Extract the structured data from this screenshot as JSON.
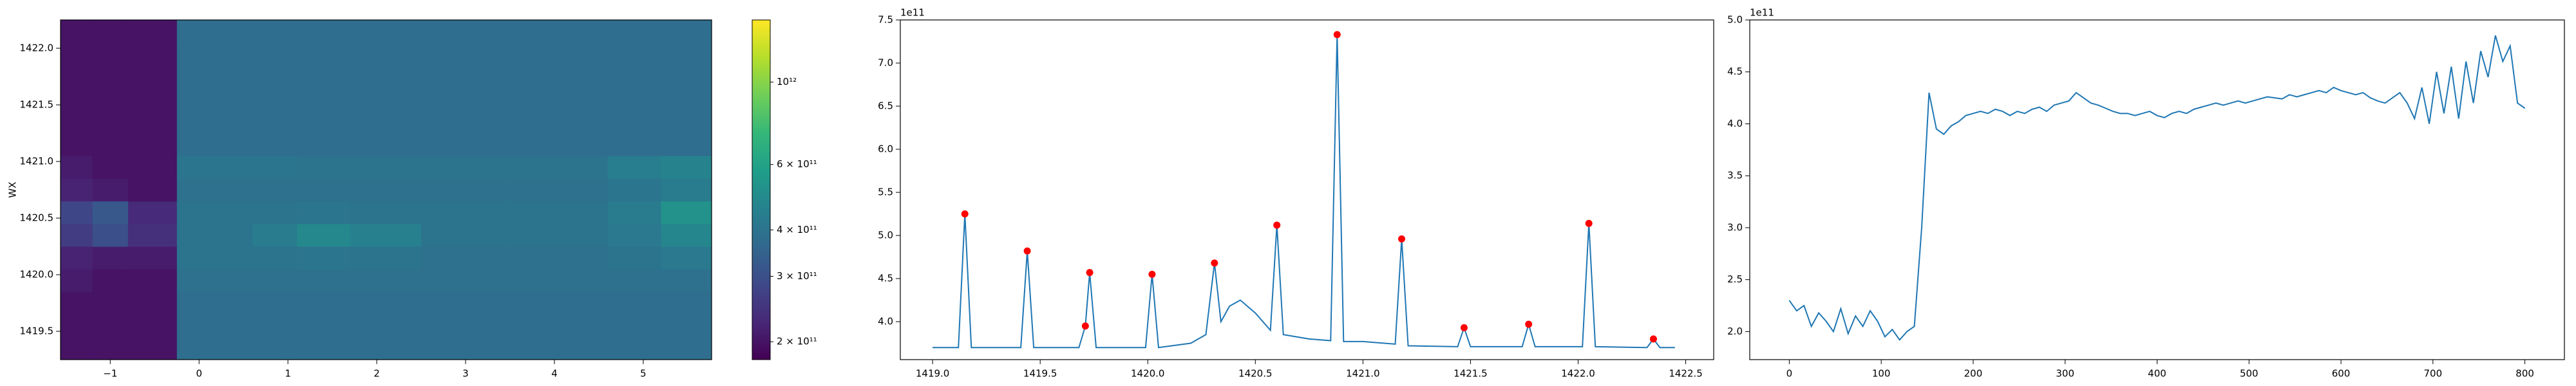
{
  "chart_data": [
    {
      "type": "heatmap",
      "ylabel": "WX",
      "x_edges": [
        -1.56,
        -1.2,
        -0.8,
        -0.25,
        0.6,
        1.1,
        1.7,
        2.5,
        3.5,
        4.6,
        5.2,
        5.77
      ],
      "y_edges": [
        1419.25,
        1419.45,
        1419.65,
        1419.85,
        1420.05,
        1420.25,
        1420.45,
        1420.65,
        1420.85,
        1421.05,
        1421.25,
        1421.45,
        1421.65,
        1421.85,
        1422.05,
        1422.25
      ],
      "z": [
        [
          200000000000.0,
          200000000000.0,
          200000000000.0,
          380000000000.0,
          380000000000.0,
          380000000000.0,
          380000000000.0,
          380000000000.0,
          380000000000.0,
          380000000000.0,
          380000000000.0
        ],
        [
          200000000000.0,
          200000000000.0,
          200000000000.0,
          380000000000.0,
          380000000000.0,
          380000000000.0,
          380000000000.0,
          380000000000.0,
          380000000000.0,
          380000000000.0,
          380000000000.0
        ],
        [
          200000000000.0,
          200000000000.0,
          200000000000.0,
          380000000000.0,
          380000000000.0,
          380000000000.0,
          380000000000.0,
          380000000000.0,
          380000000000.0,
          380000000000.0,
          380000000000.0
        ],
        [
          210000000000.0,
          200000000000.0,
          200000000000.0,
          390000000000.0,
          390000000000.0,
          390000000000.0,
          390000000000.0,
          390000000000.0,
          390000000000.0,
          390000000000.0,
          390000000000.0
        ],
        [
          220000000000.0,
          210000000000.0,
          210000000000.0,
          400000000000.0,
          400000000000.0,
          410000000000.0,
          400000000000.0,
          390000000000.0,
          390000000000.0,
          400000000000.0,
          420000000000.0
        ],
        [
          260000000000.0,
          300000000000.0,
          240000000000.0,
          400000000000.0,
          430000000000.0,
          480000000000.0,
          450000000000.0,
          400000000000.0,
          400000000000.0,
          420000000000.0,
          470000000000.0
        ],
        [
          280000000000.0,
          320000000000.0,
          230000000000.0,
          400000000000.0,
          400000000000.0,
          410000000000.0,
          400000000000.0,
          400000000000.0,
          400000000000.0,
          430000000000.0,
          520000000000.0
        ],
        [
          220000000000.0,
          210000000000.0,
          200000000000.0,
          390000000000.0,
          390000000000.0,
          390000000000.0,
          390000000000.0,
          390000000000.0,
          390000000000.0,
          410000000000.0,
          430000000000.0
        ],
        [
          210000000000.0,
          200000000000.0,
          200000000000.0,
          410000000000.0,
          410000000000.0,
          400000000000.0,
          400000000000.0,
          400000000000.0,
          400000000000.0,
          440000000000.0,
          460000000000.0
        ],
        [
          200000000000.0,
          200000000000.0,
          200000000000.0,
          380000000000.0,
          380000000000.0,
          380000000000.0,
          380000000000.0,
          380000000000.0,
          380000000000.0,
          380000000000.0,
          380000000000.0
        ],
        [
          200000000000.0,
          200000000000.0,
          200000000000.0,
          380000000000.0,
          380000000000.0,
          380000000000.0,
          380000000000.0,
          380000000000.0,
          380000000000.0,
          380000000000.0,
          380000000000.0
        ],
        [
          200000000000.0,
          200000000000.0,
          200000000000.0,
          380000000000.0,
          380000000000.0,
          380000000000.0,
          380000000000.0,
          380000000000.0,
          380000000000.0,
          380000000000.0,
          380000000000.0
        ],
        [
          200000000000.0,
          200000000000.0,
          200000000000.0,
          380000000000.0,
          380000000000.0,
          380000000000.0,
          380000000000.0,
          380000000000.0,
          380000000000.0,
          380000000000.0,
          380000000000.0
        ],
        [
          200000000000.0,
          200000000000.0,
          200000000000.0,
          380000000000.0,
          380000000000.0,
          380000000000.0,
          380000000000.0,
          380000000000.0,
          380000000000.0,
          380000000000.0,
          380000000000.0
        ],
        [
          200000000000.0,
          200000000000.0,
          200000000000.0,
          380000000000.0,
          380000000000.0,
          380000000000.0,
          380000000000.0,
          380000000000.0,
          380000000000.0,
          380000000000.0,
          380000000000.0
        ]
      ],
      "xlim": [
        -1.56,
        5.77
      ],
      "ylim": [
        1419.25,
        1422.25
      ],
      "xticks": [
        {
          "value": -1,
          "label": "−1"
        },
        0,
        1,
        2,
        3,
        4,
        5
      ],
      "yticks": [
        1419.5,
        {
          "value": 1420,
          "label": "1420.0"
        },
        1420.5,
        {
          "value": 1421,
          "label": "1421.0"
        },
        1421.5,
        {
          "value": 1422,
          "label": "1422.0"
        }
      ],
      "colorbar": {
        "scale": "log",
        "colormap": "viridis",
        "lim": [
          179000000000.0,
          1470000000000.0
        ],
        "ticks": [
          {
            "value": 200000000000.0,
            "label": "2 × 10¹¹"
          },
          {
            "value": 300000000000.0,
            "label": "3 × 10¹¹"
          },
          {
            "value": 400000000000.0,
            "label": "4 × 10¹¹"
          },
          {
            "value": 600000000000.0,
            "label": "6 × 10¹¹"
          },
          {
            "value": 1000000000000.0,
            "label": "10¹²"
          }
        ]
      }
    },
    {
      "type": "line",
      "offset_text": "1e11",
      "color": "#1f77b4",
      "x": [
        1419.0,
        1419.12,
        1419.15,
        1419.18,
        1419.41,
        1419.44,
        1419.47,
        1419.68,
        1419.71,
        1419.73,
        1419.76,
        1419.99,
        1420.02,
        1420.05,
        1420.2,
        1420.27,
        1420.31,
        1420.34,
        1420.38,
        1420.43,
        1420.5,
        1420.57,
        1420.6,
        1420.63,
        1420.75,
        1420.85,
        1420.88,
        1420.91,
        1421.0,
        1421.15,
        1421.18,
        1421.21,
        1421.44,
        1421.47,
        1421.5,
        1421.74,
        1421.77,
        1421.8,
        1422.02,
        1422.05,
        1422.08,
        1422.32,
        1422.35,
        1422.38,
        1422.45
      ],
      "values": [
        370000000000.0,
        370000000000.0,
        525000000000.0,
        370000000000.0,
        370000000000.0,
        482000000000.0,
        370000000000.0,
        370000000000.0,
        395000000000.0,
        457000000000.0,
        370000000000.0,
        370000000000.0,
        455000000000.0,
        370000000000.0,
        375000000000.0,
        385000000000.0,
        468000000000.0,
        400000000000.0,
        418000000000.0,
        425000000000.0,
        410000000000.0,
        390000000000.0,
        512000000000.0,
        385000000000.0,
        380000000000.0,
        378000000000.0,
        733000000000.0,
        377000000000.0,
        377000000000.0,
        374000000000.0,
        496000000000.0,
        372000000000.0,
        371000000000.0,
        393000000000.0,
        371000000000.0,
        371000000000.0,
        397000000000.0,
        371000000000.0,
        371000000000.0,
        514000000000.0,
        371000000000.0,
        370000000000.0,
        380000000000.0,
        370000000000.0,
        370000000000.0
      ],
      "peaks": {
        "color": "#ff0000",
        "x": [
          1419.15,
          1419.44,
          1419.71,
          1419.73,
          1420.02,
          1420.31,
          1420.6,
          1420.88,
          1421.18,
          1421.47,
          1421.77,
          1422.05,
          1422.35
        ],
        "values": [
          525000000000.0,
          482000000000.0,
          395000000000.0,
          457000000000.0,
          455000000000.0,
          468000000000.0,
          512000000000.0,
          733000000000.0,
          496000000000.0,
          393000000000.0,
          397000000000.0,
          514000000000.0,
          380000000000.0
        ]
      },
      "xlim": [
        1418.85,
        1422.63
      ],
      "ylim": [
        356000000000.0,
        750000000000.0
      ],
      "xticks": [
        {
          "value": 1419,
          "label": "1419.0"
        },
        1419.5,
        {
          "value": 1420,
          "label": "1420.0"
        },
        1420.5,
        {
          "value": 1421,
          "label": "1421.0"
        },
        1421.5,
        {
          "value": 1422,
          "label": "1422.0"
        },
        1422.5
      ],
      "yticks": [
        {
          "value": 400000000000.0,
          "label": "4.0"
        },
        {
          "value": 450000000000.0,
          "label": "4.5"
        },
        {
          "value": 500000000000.0,
          "label": "5.0"
        },
        {
          "value": 550000000000.0,
          "label": "5.5"
        },
        {
          "value": 600000000000.0,
          "label": "6.0"
        },
        {
          "value": 650000000000.0,
          "label": "6.5"
        },
        {
          "value": 700000000000.0,
          "label": "7.0"
        },
        {
          "value": 750000000000.0,
          "label": "7.5"
        }
      ]
    },
    {
      "type": "line",
      "offset_text": "1e11",
      "color": "#1f77b4",
      "x": [
        0,
        8,
        16,
        24,
        32,
        40,
        48,
        56,
        64,
        72,
        80,
        88,
        96,
        104,
        112,
        120,
        128,
        136,
        144,
        152,
        160,
        168,
        176,
        184,
        192,
        200,
        208,
        216,
        224,
        232,
        240,
        248,
        256,
        264,
        272,
        280,
        288,
        296,
        304,
        312,
        320,
        328,
        336,
        344,
        352,
        360,
        368,
        376,
        384,
        392,
        400,
        408,
        416,
        424,
        432,
        440,
        448,
        456,
        464,
        472,
        480,
        488,
        496,
        504,
        512,
        520,
        528,
        536,
        544,
        552,
        560,
        568,
        576,
        584,
        592,
        600,
        608,
        616,
        624,
        632,
        640,
        648,
        656,
        664,
        672,
        680,
        688,
        696,
        704,
        712,
        720,
        728,
        736,
        744,
        752,
        760,
        768,
        776,
        784,
        792,
        800
      ],
      "values": [
        230000000000.0,
        220000000000.0,
        225000000000.0,
        205000000000.0,
        218000000000.0,
        210000000000.0,
        200000000000.0,
        222000000000.0,
        198000000000.0,
        215000000000.0,
        205000000000.0,
        220000000000.0,
        210000000000.0,
        195000000000.0,
        202000000000.0,
        192000000000.0,
        200000000000.0,
        205000000000.0,
        300000000000.0,
        430000000000.0,
        395000000000.0,
        390000000000.0,
        398000000000.0,
        402000000000.0,
        408000000000.0,
        410000000000.0,
        412000000000.0,
        410000000000.0,
        414000000000.0,
        412000000000.0,
        408000000000.0,
        412000000000.0,
        410000000000.0,
        414000000000.0,
        416000000000.0,
        412000000000.0,
        418000000000.0,
        420000000000.0,
        422000000000.0,
        430000000000.0,
        425000000000.0,
        420000000000.0,
        418000000000.0,
        415000000000.0,
        412000000000.0,
        410000000000.0,
        410000000000.0,
        408000000000.0,
        410000000000.0,
        412000000000.0,
        408000000000.0,
        406000000000.0,
        410000000000.0,
        412000000000.0,
        410000000000.0,
        414000000000.0,
        416000000000.0,
        418000000000.0,
        420000000000.0,
        418000000000.0,
        420000000000.0,
        422000000000.0,
        420000000000.0,
        422000000000.0,
        424000000000.0,
        426000000000.0,
        425000000000.0,
        424000000000.0,
        428000000000.0,
        426000000000.0,
        428000000000.0,
        430000000000.0,
        432000000000.0,
        430000000000.0,
        435000000000.0,
        432000000000.0,
        430000000000.0,
        428000000000.0,
        430000000000.0,
        425000000000.0,
        422000000000.0,
        420000000000.0,
        425000000000.0,
        430000000000.0,
        420000000000.0,
        405000000000.0,
        435000000000.0,
        400000000000.0,
        450000000000.0,
        410000000000.0,
        455000000000.0,
        405000000000.0,
        460000000000.0,
        420000000000.0,
        470000000000.0,
        445000000000.0,
        485000000000.0,
        460000000000.0,
        475000000000.0,
        420000000000.0,
        415000000000.0
      ],
      "xlim": [
        -43,
        843
      ],
      "ylim": [
        173000000000.0,
        500000000000.0
      ],
      "xticks": [
        0,
        100,
        200,
        300,
        400,
        500,
        600,
        700,
        800
      ],
      "yticks": [
        {
          "value": 200000000000.0,
          "label": "2.0"
        },
        {
          "value": 250000000000.0,
          "label": "2.5"
        },
        {
          "value": 300000000000.0,
          "label": "3.0"
        },
        {
          "value": 350000000000.0,
          "label": "3.5"
        },
        {
          "value": 400000000000.0,
          "label": "4.0"
        },
        {
          "value": 450000000000.0,
          "label": "4.5"
        },
        {
          "value": 500000000000.0,
          "label": "5.0"
        }
      ]
    }
  ]
}
